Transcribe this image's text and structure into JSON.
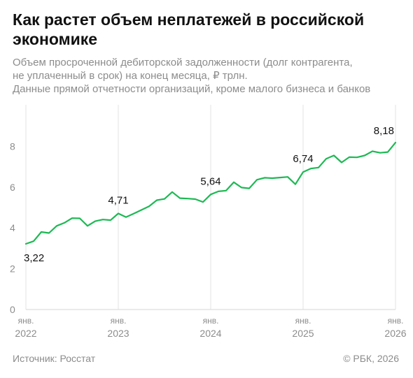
{
  "chart_data": {
    "type": "line",
    "title": "Как растет объем неплатежей в российской экономике",
    "subtitle": [
      "Объем просроченной дебиторской задолженности (долг контрагента,",
      "не уплаченный в срок) на конец месяца, ₽ трлн.",
      "Данные прямой отчетности организаций, кроме малого бизнеса и банков"
    ],
    "xlabel": "",
    "ylabel": "",
    "ylim": [
      0,
      10
    ],
    "yticks": [
      0,
      2,
      4,
      6,
      8
    ],
    "grid": true,
    "x_tick_labels": [
      {
        "month": "янв.",
        "year": "2022"
      },
      {
        "month": "янв.",
        "year": "2023"
      },
      {
        "month": "янв.",
        "year": "2024"
      },
      {
        "month": "янв.",
        "year": "2025"
      },
      {
        "month": "янв.",
        "year": "2026"
      }
    ],
    "x_start": "2022-01",
    "series": [
      {
        "color": "#1db954",
        "values": [
          3.22,
          3.35,
          3.8,
          3.75,
          4.1,
          4.25,
          4.48,
          4.47,
          4.1,
          4.33,
          4.41,
          4.38,
          4.71,
          4.53,
          4.7,
          4.88,
          5.06,
          5.36,
          5.42,
          5.76,
          5.46,
          5.44,
          5.41,
          5.27,
          5.64,
          5.79,
          5.83,
          6.24,
          5.98,
          5.94,
          6.36,
          6.46,
          6.44,
          6.47,
          6.5,
          6.14,
          6.74,
          6.91,
          6.96,
          7.39,
          7.55,
          7.21,
          7.47,
          7.46,
          7.55,
          7.76,
          7.68,
          7.72,
          8.18
        ]
      }
    ],
    "annotations": [
      {
        "index": 0,
        "label": "3,22",
        "pos": "below"
      },
      {
        "index": 12,
        "label": "4,71",
        "pos": "above"
      },
      {
        "index": 24,
        "label": "5,64",
        "pos": "above"
      },
      {
        "index": 36,
        "label": "6,74",
        "pos": "above"
      },
      {
        "index": 48,
        "label": "8,18",
        "pos": "above"
      }
    ]
  },
  "footer": {
    "source": "Источник: Росстат",
    "copyright": "© РБК, 2026"
  }
}
